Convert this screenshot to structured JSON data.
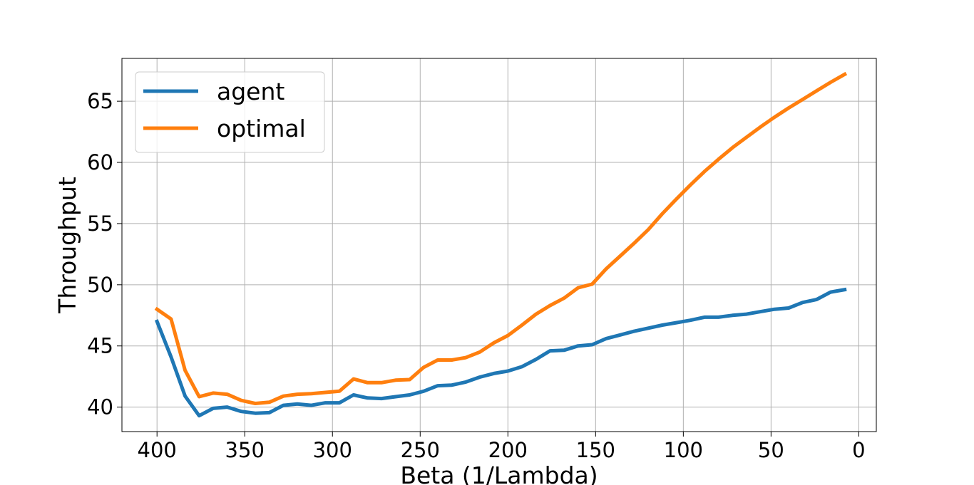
{
  "chart_data": {
    "type": "line",
    "title": "",
    "xlabel": "Beta (1/Lambda)",
    "ylabel": "Throughput",
    "xlim": [
      420,
      -10
    ],
    "ylim": [
      38,
      68.5
    ],
    "x_inverted": true,
    "grid": true,
    "legend_placement": "top-left",
    "xticks": [
      400,
      350,
      300,
      250,
      200,
      150,
      100,
      50,
      0
    ],
    "yticks": [
      40,
      45,
      50,
      55,
      60,
      65
    ],
    "xtick_labels": [
      "400",
      "350",
      "300",
      "250",
      "200",
      "150",
      "100",
      "50",
      "0"
    ],
    "ytick_labels": [
      "40",
      "45",
      "50",
      "55",
      "60",
      "65"
    ],
    "x": [
      400,
      392,
      384,
      376,
      368,
      360,
      352,
      344,
      336,
      328,
      320,
      312,
      304,
      296,
      288,
      280,
      272,
      264,
      256,
      248,
      240,
      232,
      224,
      216,
      208,
      200,
      192,
      184,
      176,
      168,
      160,
      152,
      144,
      136,
      128,
      120,
      112,
      104,
      96,
      88,
      80,
      72,
      64,
      56,
      48,
      40,
      32,
      24,
      16,
      8
    ],
    "series": [
      {
        "name": "agent",
        "color": "#1f77b4",
        "values": [
          47.0,
          44.1,
          40.9,
          39.3,
          39.9,
          40.0,
          39.65,
          39.5,
          39.55,
          40.15,
          40.25,
          40.15,
          40.35,
          40.35,
          41.0,
          40.75,
          40.7,
          40.85,
          41.0,
          41.3,
          41.75,
          41.8,
          42.05,
          42.45,
          42.75,
          42.95,
          43.3,
          43.9,
          44.6,
          44.65,
          45.0,
          45.1,
          45.6,
          45.9,
          46.2,
          46.45,
          46.7,
          46.9,
          47.1,
          47.35,
          47.35,
          47.5,
          47.6,
          47.8,
          48.0,
          48.1,
          48.55,
          48.8,
          49.4,
          49.6
        ]
      },
      {
        "name": "optimal",
        "color": "#ff7f0e",
        "values": [
          48.0,
          47.2,
          43.0,
          40.85,
          41.15,
          41.05,
          40.55,
          40.3,
          40.4,
          40.9,
          41.05,
          41.1,
          41.2,
          41.3,
          42.3,
          42.0,
          42.0,
          42.2,
          42.25,
          43.25,
          43.85,
          43.85,
          44.05,
          44.5,
          45.25,
          45.85,
          46.7,
          47.6,
          48.3,
          48.9,
          49.75,
          50.05,
          51.3,
          52.35,
          53.4,
          54.5,
          55.8,
          57.0,
          58.15,
          59.25,
          60.25,
          61.2,
          62.05,
          62.9,
          63.7,
          64.45,
          65.15,
          65.85,
          66.55,
          67.2
        ]
      }
    ]
  }
}
